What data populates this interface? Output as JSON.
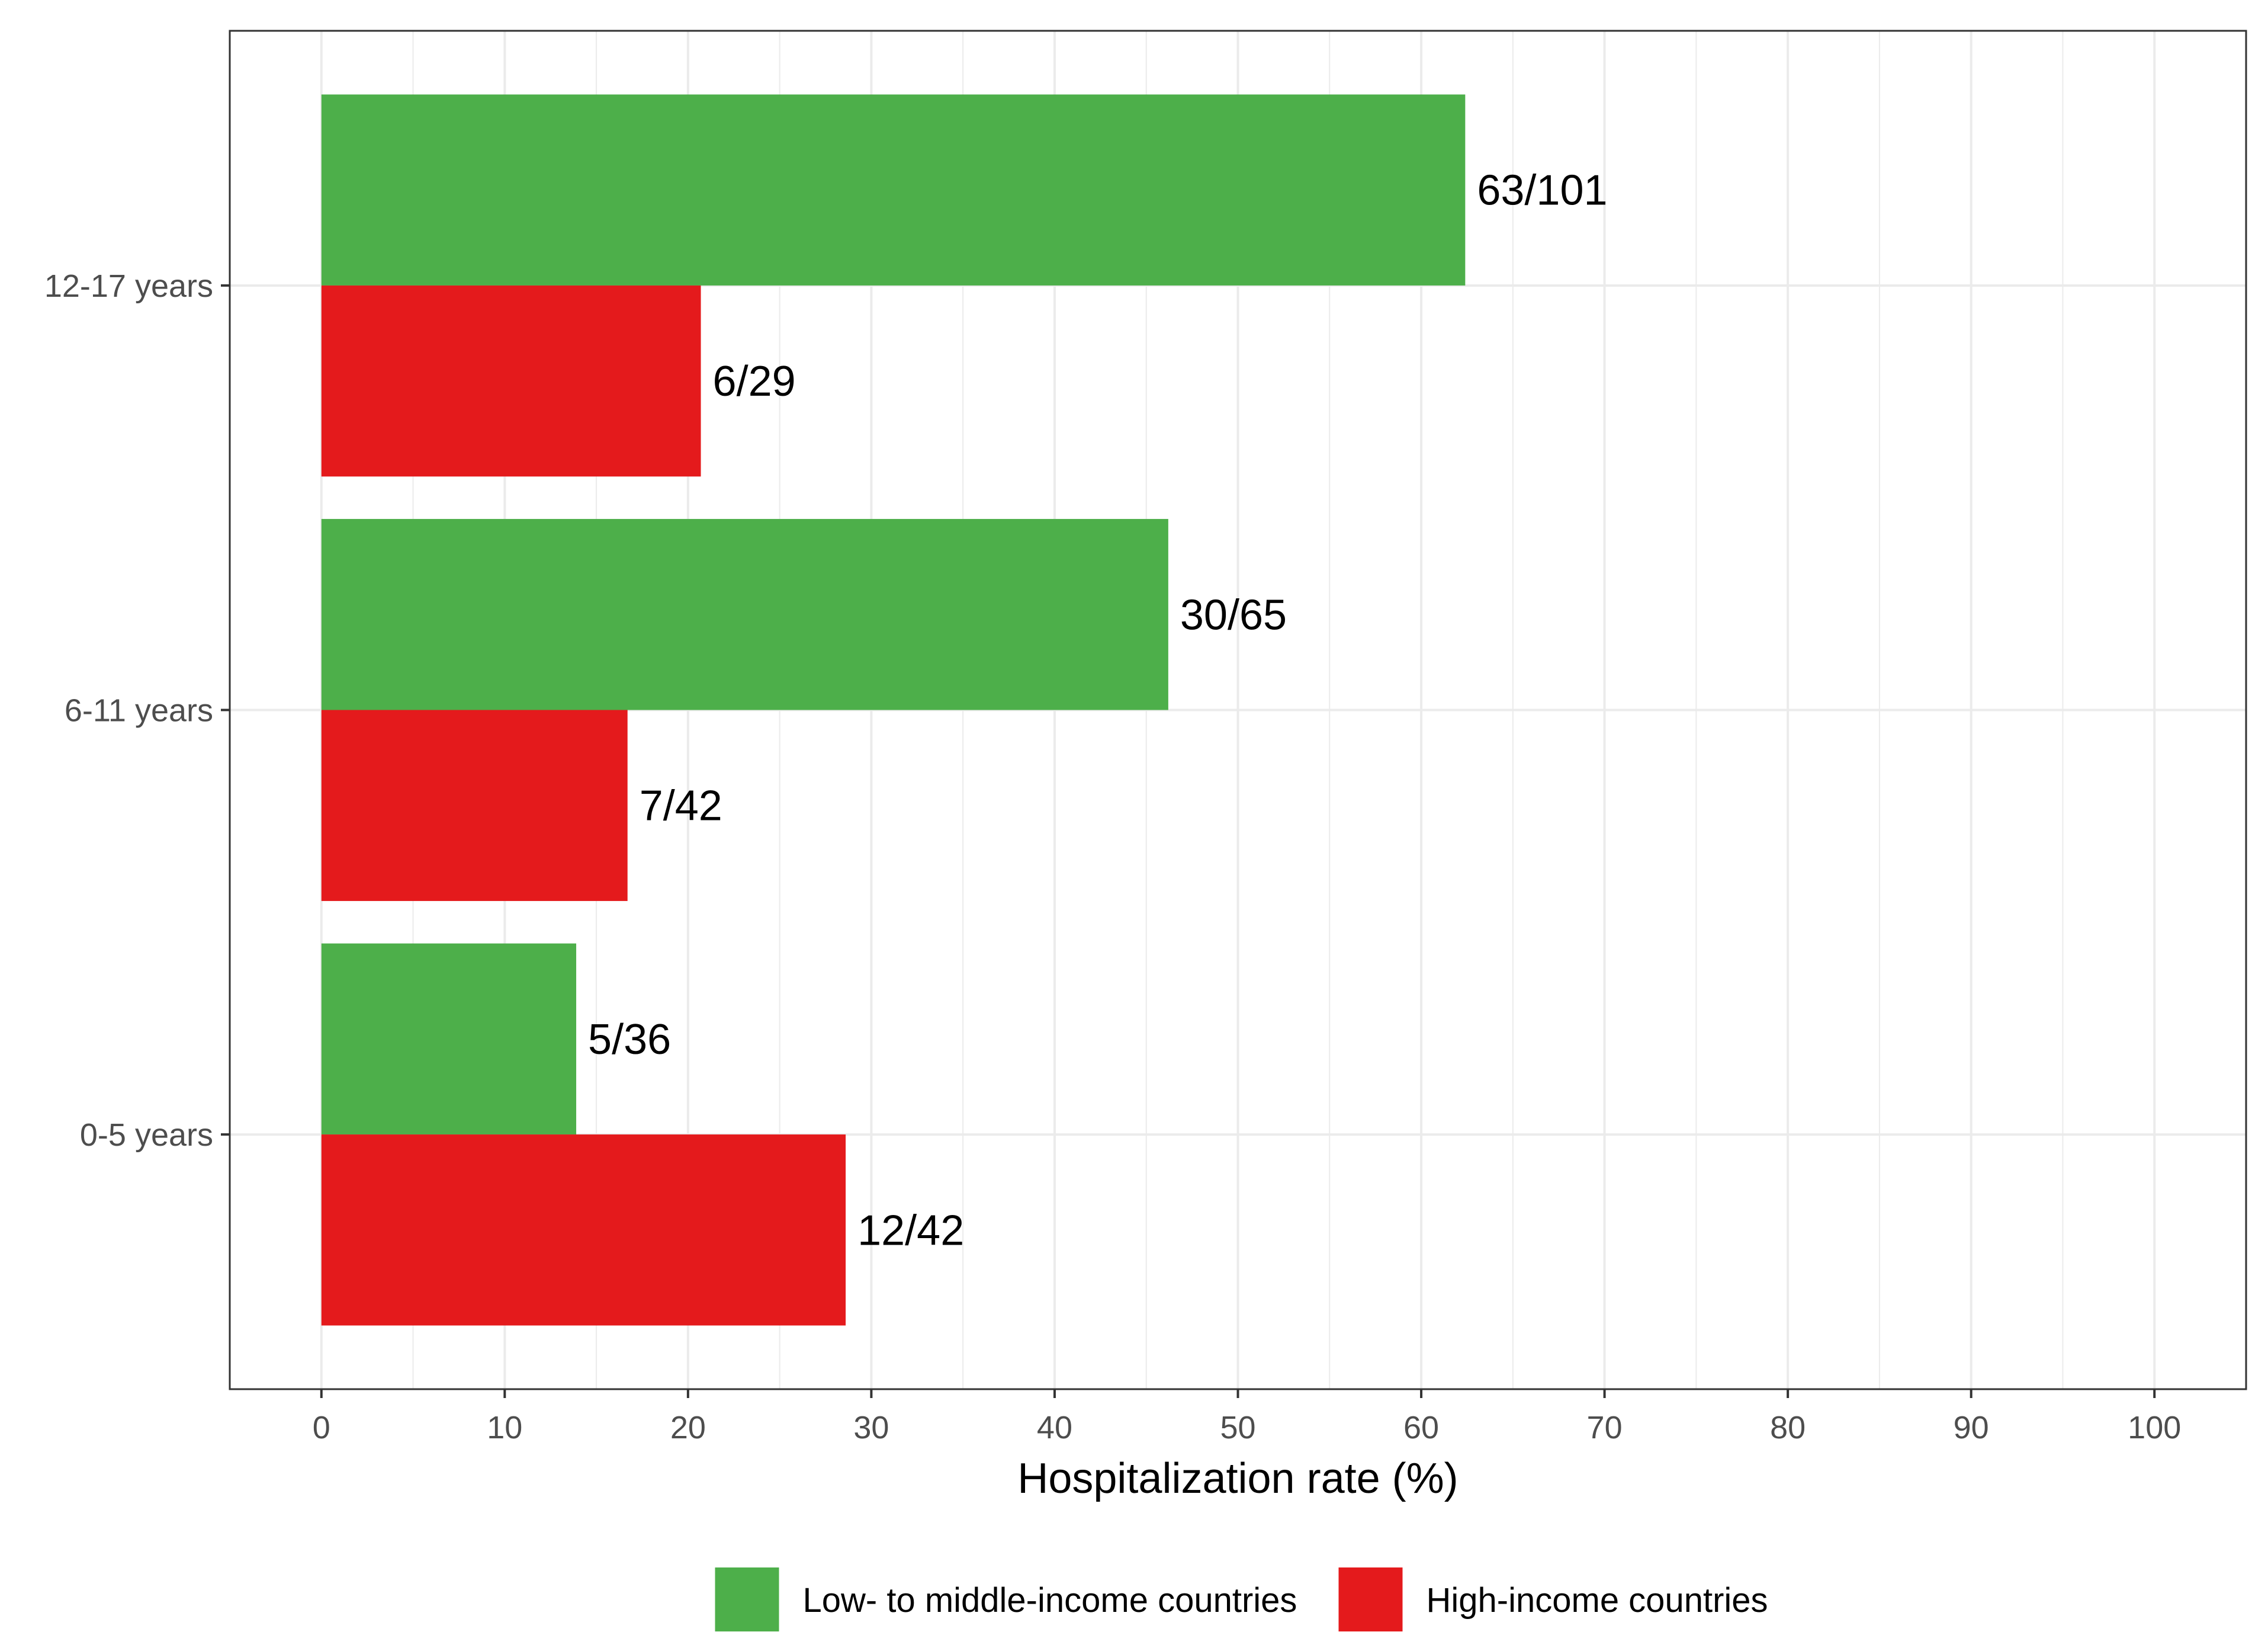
{
  "chart_data": {
    "type": "bar",
    "orientation": "horizontal",
    "xlabel": "Hospitalization rate (%)",
    "ylabel": "",
    "xlim": [
      -5,
      105
    ],
    "x_ticks": [
      "0",
      "10",
      "20",
      "30",
      "40",
      "50",
      "60",
      "70",
      "80",
      "90",
      "100"
    ],
    "categories": [
      "12-17 years",
      "6-11 years",
      "0-5 years"
    ],
    "series": [
      {
        "name": "Low- to middle-income countries",
        "color": "#4daf4a",
        "values": [
          62.4,
          46.2,
          13.9
        ],
        "labels": [
          "63/101",
          "30/65",
          "5/36"
        ]
      },
      {
        "name": "High-income countries",
        "color": "#e41a1c",
        "values": [
          20.7,
          16.7,
          28.6
        ],
        "labels": [
          "6/29",
          "7/42",
          "12/42"
        ]
      }
    ],
    "grid": true,
    "legend_position": "bottom"
  }
}
